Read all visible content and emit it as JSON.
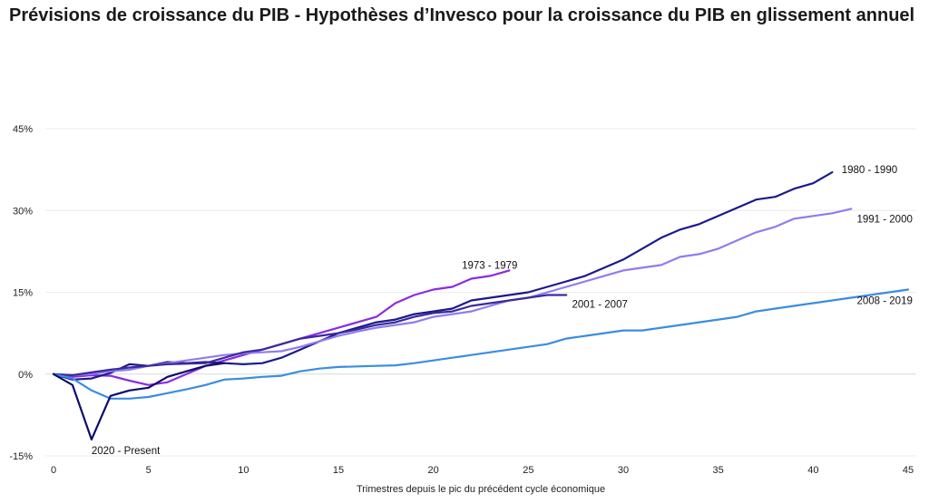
{
  "chart_data": {
    "type": "line",
    "title": "Prévisions de croissance du PIB - Hypothèses d’Invesco pour la croissance du PIB en glissement annuel",
    "xlabel": "Trimestres depuis le pic du précédent cycle économique",
    "ylabel": "",
    "xlim": [
      0,
      45
    ],
    "ylim": [
      -15,
      45
    ],
    "x_ticks": [
      "0",
      "5",
      "10",
      "15",
      "20",
      "25",
      "30",
      "35",
      "40",
      "45"
    ],
    "y_ticks": [
      "45%",
      "30%",
      "15%",
      "0%",
      "-15%"
    ],
    "grid": "horizontal",
    "legend": "inline labels",
    "series": [
      {
        "name": "1973 - 1979",
        "color": "#8a2be2",
        "x": [
          0,
          1,
          2,
          3,
          4,
          5,
          6,
          7,
          8,
          9,
          10,
          11,
          12,
          13,
          14,
          15,
          16,
          17,
          18,
          19,
          20,
          21,
          22,
          23,
          24
        ],
        "values": [
          0,
          -0.5,
          -0.2,
          -0.3,
          -1.2,
          -2,
          -1.5,
          0,
          1.5,
          2.5,
          3.5,
          4.5,
          5.5,
          6.5,
          7.5,
          8.5,
          9.5,
          10.5,
          13,
          14.5,
          15.5,
          16,
          17.5,
          18,
          19
        ]
      },
      {
        "name": "1980 - 1990",
        "color": "#1a1a8c",
        "x": [
          0,
          1,
          2,
          3,
          4,
          5,
          6,
          7,
          8,
          9,
          10,
          11,
          12,
          13,
          14,
          15,
          16,
          17,
          18,
          19,
          20,
          21,
          22,
          23,
          24,
          25,
          26,
          27,
          28,
          29,
          30,
          31,
          32,
          33,
          34,
          35,
          36,
          37,
          38,
          39,
          40,
          41
        ],
        "values": [
          0,
          -1,
          -0.8,
          0.2,
          1.8,
          1.5,
          2.2,
          2,
          2.2,
          2,
          1.8,
          2,
          3,
          4.5,
          6,
          7.5,
          8.5,
          9.5,
          10,
          11,
          11.5,
          12,
          13.5,
          14,
          14.5,
          15,
          16,
          17,
          18,
          19.5,
          21,
          23,
          25,
          26.5,
          27.5,
          29,
          30.5,
          32,
          32.5,
          34,
          35,
          37
        ]
      },
      {
        "name": "1991 - 2000",
        "color": "#8f7cf0",
        "x": [
          0,
          1,
          2,
          3,
          4,
          5,
          6,
          7,
          8,
          9,
          10,
          11,
          12,
          13,
          14,
          15,
          16,
          17,
          18,
          19,
          20,
          21,
          22,
          23,
          24,
          25,
          26,
          27,
          28,
          29,
          30,
          31,
          32,
          33,
          34,
          35,
          36,
          37,
          38,
          39,
          40,
          41,
          42
        ],
        "values": [
          0,
          -0.2,
          0,
          0.5,
          0.8,
          1.5,
          2,
          2.5,
          3,
          3.5,
          3.8,
          4,
          4.2,
          5,
          6,
          7,
          7.8,
          8.5,
          9,
          9.5,
          10.5,
          11,
          11.5,
          12.5,
          13.5,
          14,
          15,
          16,
          17,
          18,
          19,
          19.5,
          20,
          21.5,
          22,
          23,
          24.5,
          26,
          27,
          28.5,
          29,
          29.5,
          30.3
        ]
      },
      {
        "name": "2001 - 2007",
        "color": "#3b2a9e",
        "x": [
          0,
          1,
          2,
          3,
          4,
          5,
          6,
          7,
          8,
          9,
          10,
          11,
          12,
          13,
          14,
          15,
          16,
          17,
          18,
          19,
          20,
          21,
          22,
          23,
          24,
          25,
          26,
          27
        ],
        "values": [
          0,
          -0.2,
          0.3,
          0.8,
          1.2,
          1.5,
          1.8,
          1.9,
          2,
          3,
          4,
          4.5,
          5.5,
          6.5,
          7,
          7.5,
          8.2,
          9,
          9.5,
          10.5,
          11.2,
          11.5,
          12.5,
          13,
          13.5,
          14,
          14.5,
          14.5
        ]
      },
      {
        "name": "2008 - 2019",
        "color": "#3a8de0",
        "x": [
          0,
          1,
          2,
          3,
          4,
          5,
          6,
          7,
          8,
          9,
          10,
          11,
          12,
          13,
          14,
          15,
          16,
          17,
          18,
          19,
          20,
          21,
          22,
          23,
          24,
          25,
          26,
          27,
          28,
          29,
          30,
          31,
          32,
          33,
          34,
          35,
          36,
          37,
          38,
          39,
          40,
          41,
          42,
          43,
          44,
          45
        ],
        "values": [
          0,
          -0.8,
          -3,
          -4.5,
          -4.5,
          -4.2,
          -3.5,
          -2.8,
          -2,
          -1,
          -0.8,
          -0.5,
          -0.3,
          0.5,
          1,
          1.3,
          1.4,
          1.5,
          1.6,
          2,
          2.5,
          3,
          3.5,
          4,
          4.5,
          5,
          5.5,
          6.5,
          7,
          7.5,
          8,
          8,
          8.5,
          9,
          9.5,
          10,
          10.5,
          11.5,
          12,
          12.5,
          13,
          13.5,
          14,
          14.5,
          15,
          15.5
        ]
      },
      {
        "name": "2020 - Present",
        "color": "#0d0d6b",
        "x": [
          0,
          1,
          2,
          3,
          4,
          5,
          6,
          7,
          8,
          9
        ],
        "values": [
          0,
          -2,
          -12,
          -4,
          -3,
          -2.5,
          -0.5,
          0.5,
          1.5,
          2
        ]
      }
    ],
    "series_labels": [
      {
        "series": "1973 - 1979",
        "x": 21.5,
        "y": 20
      },
      {
        "series": "1980 - 1990",
        "x": 41.5,
        "y": 37.5
      },
      {
        "series": "1991 - 2000",
        "x": 42.3,
        "y": 28.5
      },
      {
        "series": "2001 - 2007",
        "x": 27.3,
        "y": 12.8
      },
      {
        "series": "2008 - 2019",
        "x": 42.3,
        "y": 13.5
      },
      {
        "series": "2020 - Present",
        "x": 2,
        "y": -14
      }
    ]
  }
}
